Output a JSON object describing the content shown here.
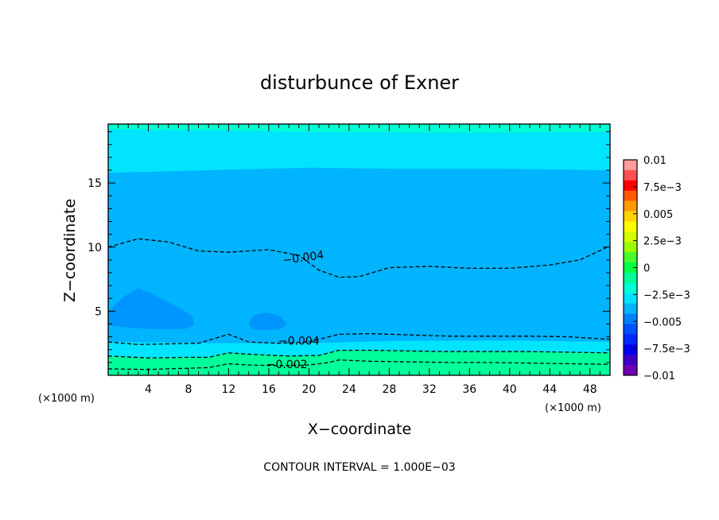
{
  "chart_data": {
    "type": "contour",
    "title": "disturbunce of Exner",
    "xlabel": "X−coordinate",
    "ylabel": "Z−coordinate",
    "x_unit": "(×1000 m)",
    "y_unit": "(×1000 m)",
    "xlim": [
      0,
      50
    ],
    "ylim": [
      0,
      19.6
    ],
    "x_ticks": [
      4,
      8,
      12,
      16,
      20,
      24,
      28,
      32,
      36,
      40,
      44,
      48
    ],
    "y_ticks": [
      5,
      10,
      15
    ],
    "contour_interval_text": "CONTOUR INTERVAL = 1.000E−03",
    "contour_interval": 0.001,
    "colorbar": {
      "min": -0.01,
      "max": 0.01,
      "tick_values": [
        0.01,
        0.0075,
        0.005,
        0.0025,
        0,
        -0.0025,
        -0.005,
        -0.0075,
        -0.01
      ],
      "tick_labels": [
        "0.01",
        "7.5e−3",
        "0.005",
        "2.5e−3",
        "0",
        "−2.5e−3",
        "−0.005",
        "−7.5e−3",
        "−0.01"
      ],
      "colors_top_to_bottom": [
        "#ff9c9c",
        "#ff5050",
        "#ff0000",
        "#ff5a00",
        "#ff9a00",
        "#ffd200",
        "#ffff00",
        "#d2ff00",
        "#9aff00",
        "#46ff2a",
        "#00ff46",
        "#00ff9a",
        "#00ffd2",
        "#00e4ff",
        "#00b4ff",
        "#0082ff",
        "#0050ff",
        "#0028ff",
        "#0000f0",
        "#3a00c8",
        "#6e00b4"
      ]
    },
    "fill_bands": [
      {
        "range": [
          -0.003,
          -0.002
        ],
        "color": "#00ffd2",
        "desc": "top region, z > 19"
      },
      {
        "range": [
          -0.004,
          -0.003
        ],
        "color": "#00e4ff",
        "desc": "upper layer, roughly z 16–19"
      },
      {
        "range": [
          -0.005,
          -0.004
        ],
        "color": "#00b4ff",
        "desc": "interior, roughly z 3–16"
      },
      {
        "range": [
          -0.006,
          -0.005
        ],
        "color": "#0096ff",
        "desc": "two small pockets near x 0–8, z 3.5–6.8 and x 14–17, z 3.5–4.8"
      },
      {
        "range": [
          -0.003,
          -0.002
        ],
        "color": "#00e4ff",
        "desc": "near-surface layer"
      },
      {
        "range": [
          -0.002,
          -0.001
        ],
        "color": "#00ff9a",
        "desc": "surface layer"
      }
    ],
    "contours": [
      {
        "level": -0.004,
        "label": "−0.004",
        "style": "dashed",
        "x": [
          0,
          3,
          6,
          9,
          12,
          16,
          19,
          21,
          23,
          25,
          28,
          32,
          36,
          40,
          44,
          47,
          50
        ],
        "y": [
          10.0,
          10.65,
          10.4,
          9.7,
          9.6,
          9.8,
          9.35,
          8.2,
          7.65,
          7.7,
          8.4,
          8.5,
          8.35,
          8.35,
          8.6,
          9.0,
          10.1
        ]
      },
      {
        "level": -0.004,
        "label": "−0.004",
        "style": "dashed",
        "x": [
          0,
          3,
          6,
          9,
          12,
          14,
          17,
          20,
          22,
          23,
          26,
          30,
          34,
          38,
          42,
          46,
          50
        ],
        "y": [
          2.6,
          2.4,
          2.45,
          2.5,
          3.2,
          2.6,
          2.5,
          2.6,
          3.0,
          3.2,
          3.25,
          3.15,
          3.05,
          3.05,
          3.05,
          3.0,
          2.8
        ]
      },
      {
        "level": -0.003,
        "label": "",
        "style": "dashed",
        "x": [
          0,
          4,
          8,
          10,
          12,
          15,
          18,
          21,
          22,
          23,
          26,
          30,
          34,
          38,
          42,
          46,
          50
        ],
        "y": [
          1.5,
          1.35,
          1.4,
          1.4,
          1.75,
          1.6,
          1.5,
          1.55,
          1.75,
          1.95,
          1.95,
          1.9,
          1.85,
          1.85,
          1.85,
          1.8,
          1.75
        ]
      },
      {
        "level": -0.002,
        "label": "−0.002",
        "style": "dashed",
        "x": [
          0,
          4,
          8,
          10,
          12,
          14,
          17,
          20,
          22,
          23,
          26,
          30,
          34,
          38,
          42,
          46,
          50
        ],
        "y": [
          0.5,
          0.45,
          0.55,
          0.6,
          0.9,
          0.8,
          0.75,
          0.8,
          1.0,
          1.2,
          1.1,
          1.05,
          1.0,
          1.0,
          0.95,
          0.9,
          0.85
        ]
      }
    ]
  }
}
